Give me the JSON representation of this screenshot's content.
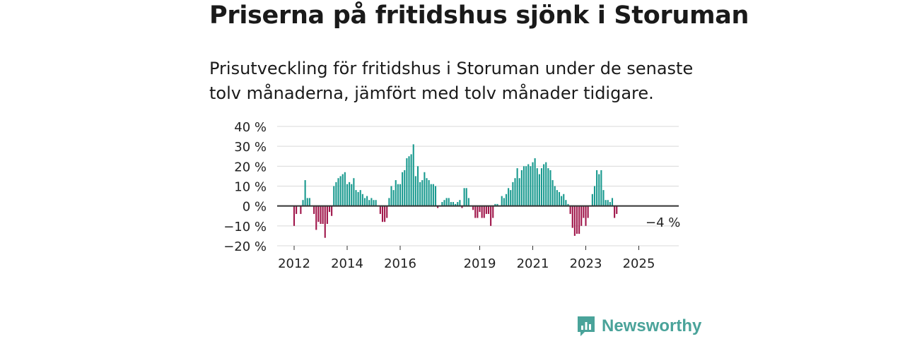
{
  "header": {
    "title": "Priserna på fritidshus sjönk i Storuman",
    "subtitle": "Prisutveckling för fritidshus i Storuman under de senaste tolv månaderna, jämfört med tolv månader tidigare."
  },
  "colors": {
    "positive": "#1a9a8f",
    "negative": "#a0164a",
    "zero_line": "#333333",
    "grid": "#d9d9d9",
    "brand": "#4aa39a"
  },
  "brand": {
    "name": "Newsworthy",
    "icon": "newsworthy-logo-icon"
  },
  "chart_data": {
    "type": "bar",
    "title": "Priserna på fritidshus sjönk i Storuman",
    "xlabel": "",
    "ylabel": "",
    "ylim": [
      -20,
      40
    ],
    "yticks": [
      40,
      30,
      20,
      10,
      0,
      -10,
      -20
    ],
    "ytick_labels": [
      "40 %",
      "30 %",
      "20 %",
      "10 %",
      "0 %",
      "−10 %",
      "−20 %"
    ],
    "x_start_year": 2012,
    "x_start_month": 1,
    "xtick_labels": [
      "2012",
      "2014",
      "2016",
      "2019",
      "2021",
      "2023",
      "2025"
    ],
    "xtick_years": [
      2012,
      2014,
      2016,
      2019,
      2021,
      2023,
      2025
    ],
    "grid": true,
    "last_label": "−4 %",
    "values": [
      -10,
      -4,
      null,
      -4,
      3,
      13,
      4,
      4,
      null,
      -4,
      -12,
      -8,
      -9,
      -9,
      -16,
      -9,
      -3,
      -5,
      10,
      12,
      14,
      15,
      16,
      17,
      11,
      12,
      11,
      14,
      8,
      7,
      8,
      6,
      4,
      5,
      3,
      4,
      3,
      3,
      null,
      -4,
      -8,
      -8,
      -6,
      4,
      10,
      8,
      13,
      11,
      11,
      17,
      18,
      24,
      25,
      26,
      31,
      15,
      20,
      12,
      13,
      17,
      14,
      13,
      11,
      11,
      10,
      -1,
      null,
      2,
      3,
      4,
      4,
      2,
      2,
      1,
      2,
      3,
      -1,
      9,
      9,
      4,
      null,
      -2,
      -6,
      -6,
      -3,
      -6,
      -6,
      -4,
      -4,
      -10,
      -6,
      1,
      1,
      null,
      5,
      4,
      6,
      9,
      8,
      12,
      14,
      19,
      14,
      18,
      20,
      20,
      21,
      20,
      22,
      24,
      19,
      16,
      19,
      21,
      22,
      19,
      18,
      13,
      10,
      8,
      7,
      5,
      6,
      3,
      1,
      -4,
      -11,
      -15,
      -14,
      -14,
      -10,
      -6,
      -10,
      -6,
      null,
      6,
      10,
      18,
      16,
      18,
      8,
      3,
      3,
      2,
      4,
      -6,
      -4
    ]
  }
}
